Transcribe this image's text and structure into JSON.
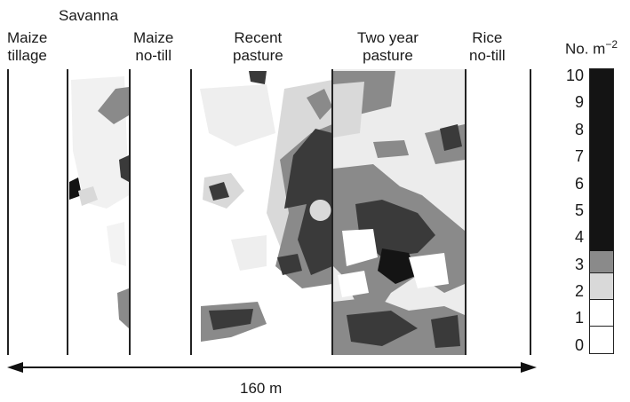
{
  "plots": [
    {
      "id": "maize-tillage",
      "lines": [
        "Maize",
        "tillage"
      ]
    },
    {
      "id": "savanna",
      "lines": [
        "Savanna"
      ]
    },
    {
      "id": "maize-no-till",
      "lines": [
        "Maize",
        "no-till"
      ]
    },
    {
      "id": "recent-pasture",
      "lines": [
        "Recent",
        "pasture"
      ]
    },
    {
      "id": "two-year-pasture",
      "lines": [
        "Two year",
        "pasture"
      ]
    },
    {
      "id": "rice-no-till",
      "lines": [
        "Rice",
        "no-till"
      ]
    }
  ],
  "legend": {
    "unit_prefix": "No. m",
    "unit_exponent": "−2",
    "ticks": [
      "10",
      "9",
      "8",
      "7",
      "6",
      "5",
      "4",
      "3",
      "2",
      "1",
      "0"
    ],
    "bands": [
      {
        "from": 0,
        "to": 1,
        "color": "#ffffff"
      },
      {
        "from": 1,
        "to": 2,
        "color": "#ffffff"
      },
      {
        "from": 2,
        "to": 3,
        "color": "#d9d9d9"
      },
      {
        "from": 3,
        "to": 3.8,
        "color": "#8a8a8a"
      },
      {
        "from": 3.8,
        "to": 10,
        "color": "#141414"
      }
    ]
  },
  "distance": "160 m",
  "colors": {
    "light": "#d9d9d9",
    "mid": "#8a8a8a",
    "dark": "#3a3a3a",
    "black": "#141414"
  }
}
